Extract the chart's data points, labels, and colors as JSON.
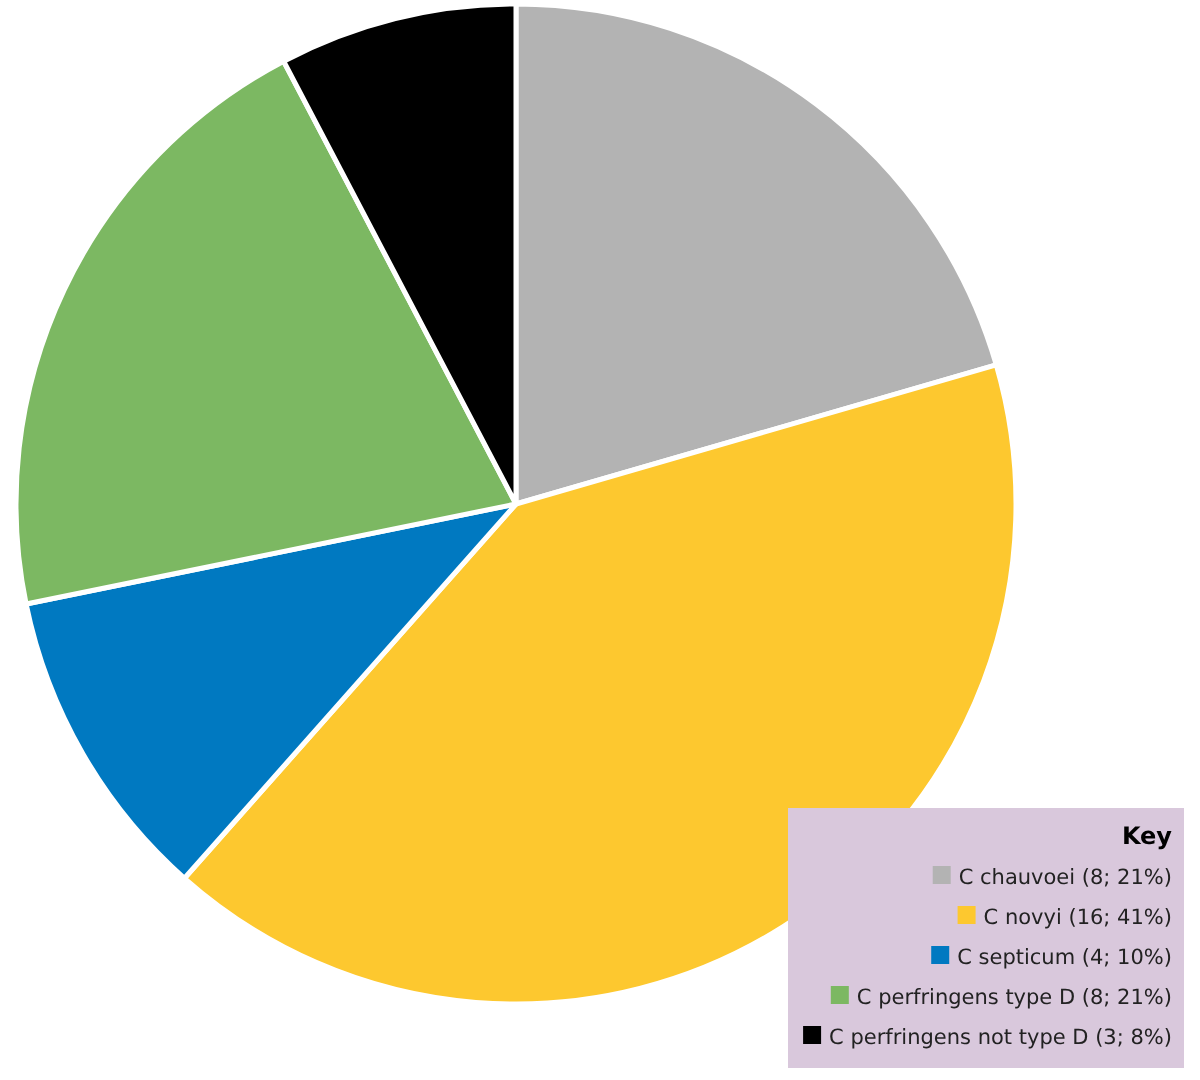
{
  "chart_data": {
    "type": "pie",
    "legend_title": "Key",
    "legend": "bottom right",
    "categories": [
      "C chauvoei (8; 21%)",
      "C novyi (16; 41%)",
      "C septicum (4; 10%)",
      "C perfringens type D (8; 21%)",
      "C perfringens not type D (3; 8%)"
    ],
    "values": [
      8,
      16,
      4,
      8,
      3
    ],
    "colors": [
      "#b3b3b3",
      "#fdc82f",
      "#0079c1",
      "#7cb862",
      "#000000"
    ]
  }
}
